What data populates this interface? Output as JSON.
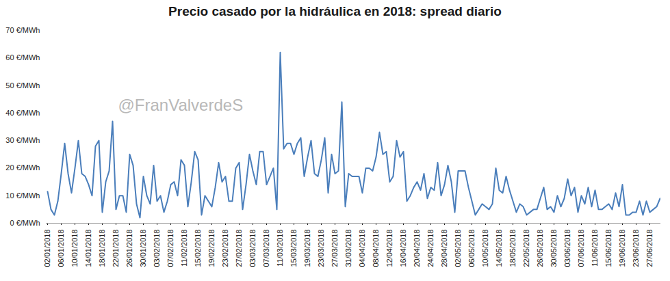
{
  "chart_data": {
    "type": "line",
    "title": "Precio casado por la hidráulica en 2018: spread diario",
    "annotations": [
      "@FranValverdeS"
    ],
    "categories": [
      "02/01/2018",
      null,
      null,
      null,
      "06/01/2018",
      null,
      null,
      null,
      "10/01/2018",
      null,
      null,
      null,
      "14/01/2018",
      null,
      null,
      null,
      "18/01/2018",
      null,
      null,
      null,
      "22/01/2018",
      null,
      null,
      null,
      "26/01/2018",
      null,
      null,
      null,
      "30/01/2018",
      null,
      null,
      null,
      "03/02/2018",
      null,
      null,
      null,
      "07/02/2018",
      null,
      null,
      null,
      "11/02/2018",
      null,
      null,
      null,
      "15/02/2018",
      null,
      null,
      null,
      "19/02/2018",
      null,
      null,
      null,
      "23/02/2018",
      null,
      null,
      null,
      "27/02/2018",
      null,
      null,
      null,
      "03/03/2018",
      null,
      null,
      null,
      "07/03/2018",
      null,
      null,
      null,
      "11/03/2018",
      null,
      null,
      null,
      "15/03/2018",
      null,
      null,
      null,
      "19/03/2018",
      null,
      null,
      null,
      "23/03/2018",
      null,
      null,
      null,
      "27/03/2018",
      null,
      null,
      null,
      "31/03/2018",
      null,
      null,
      null,
      "04/04/2018",
      null,
      null,
      null,
      "08/04/2018",
      null,
      null,
      null,
      "12/04/2018",
      null,
      null,
      null,
      "16/04/2018",
      null,
      null,
      null,
      "20/04/2018",
      null,
      null,
      null,
      "24/04/2018",
      null,
      null,
      null,
      "28/04/2018",
      null,
      null,
      null,
      "02/05/2018",
      null,
      null,
      null,
      "06/05/2018",
      null,
      null,
      null,
      "10/05/2018",
      null,
      null,
      null,
      "14/05/2018",
      null,
      null,
      null,
      "18/05/2018",
      null,
      null,
      null,
      "22/05/2018",
      null,
      null,
      null,
      "26/05/2018",
      null,
      null,
      null,
      "30/05/2018",
      null,
      null,
      null,
      "03/06/2018",
      null,
      null,
      null,
      "07/06/2018",
      null,
      null,
      null,
      "11/06/2018",
      null,
      null,
      null,
      "15/06/2018",
      null,
      null,
      null,
      "19/06/2018",
      null,
      null,
      null,
      "23/06/2018",
      null,
      null,
      null,
      "27/06/2018",
      null,
      null,
      null
    ],
    "values": [
      11.5,
      5,
      3,
      8,
      18,
      29,
      18,
      11,
      20,
      30,
      18,
      17,
      14,
      10,
      28,
      30,
      4,
      15,
      19,
      37,
      5,
      10,
      10,
      4,
      25,
      21,
      7,
      2,
      17,
      10,
      7,
      21,
      8,
      10,
      4,
      8,
      14,
      15,
      10,
      23,
      21,
      6,
      15,
      26,
      23,
      3,
      10,
      8,
      6,
      13,
      22,
      15,
      17,
      8,
      8,
      20,
      22,
      5,
      14,
      25,
      19,
      14,
      26,
      26,
      14,
      17,
      20,
      5,
      62,
      27,
      29,
      29,
      25,
      29,
      31,
      17,
      24,
      30,
      18,
      17,
      23,
      31,
      11,
      25,
      18,
      19,
      44,
      6,
      18,
      17,
      17,
      17,
      11,
      20,
      20,
      19,
      24,
      33,
      25,
      26,
      15,
      17,
      30,
      24,
      26,
      8,
      10,
      13,
      15,
      12,
      18,
      9,
      13,
      12,
      22,
      10,
      14,
      21,
      15,
      4,
      19,
      19,
      19,
      13,
      8,
      3,
      5,
      7,
      6,
      5,
      7,
      20,
      12,
      11,
      17,
      12,
      8,
      4,
      7,
      6,
      3,
      4,
      5,
      5,
      9,
      13,
      5,
      6,
      4,
      10,
      6,
      9,
      16,
      10,
      13,
      4,
      10,
      7,
      13,
      6,
      12,
      5,
      5,
      6,
      7,
      5,
      11,
      6,
      14,
      3,
      3,
      4,
      4,
      8,
      3,
      8,
      4,
      5,
      6,
      9
    ],
    "color": "#4a7ebb",
    "ylim": [
      0,
      70
    ],
    "yticks": [
      {
        "value": 0,
        "label": "0 €/MWh"
      },
      {
        "value": 10,
        "label": "10 €/MWh"
      },
      {
        "value": 20,
        "label": "20 €/MWh"
      },
      {
        "value": 30,
        "label": "30 €/MWh"
      },
      {
        "value": 40,
        "label": "40 €/MWh"
      },
      {
        "value": 50,
        "label": "50 €/MWh"
      },
      {
        "value": 60,
        "label": "60 €/MWh"
      },
      {
        "value": 70,
        "label": "70 €/MWh"
      }
    ],
    "grid": false
  }
}
